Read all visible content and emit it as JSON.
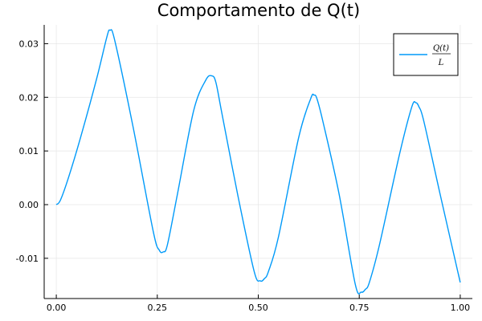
{
  "chart_data": {
    "type": "line",
    "title": "Comportamento de Q(t)",
    "xlabel": "",
    "ylabel": "",
    "xlim": [
      -0.03,
      1.03
    ],
    "ylim": [
      -0.0175,
      0.0335
    ],
    "grid": true,
    "legend_position": "top-right",
    "xticks": [
      0.0,
      0.25,
      0.5,
      0.75,
      1.0
    ],
    "xtick_labels": [
      "0.00",
      "0.25",
      "0.50",
      "0.75",
      "1.00"
    ],
    "yticks": [
      -0.01,
      0.0,
      0.01,
      0.02,
      0.03
    ],
    "ytick_labels": [
      "-0.01",
      "0.00",
      "0.01",
      "0.02",
      "0.03"
    ],
    "series": [
      {
        "name": "Q(t)/L",
        "legend": {
          "numerator": "Q(t)",
          "denominator": "L"
        },
        "color": "#009AF9",
        "x": [
          0.0,
          0.01,
          0.03,
          0.06,
          0.1,
          0.125,
          0.133,
          0.145,
          0.19,
          0.24,
          0.255,
          0.265,
          0.275,
          0.3,
          0.34,
          0.37,
          0.385,
          0.395,
          0.41,
          0.45,
          0.49,
          0.505,
          0.515,
          0.525,
          0.55,
          0.6,
          0.63,
          0.638,
          0.645,
          0.66,
          0.7,
          0.74,
          0.755,
          0.765,
          0.775,
          0.8,
          0.85,
          0.88,
          0.89,
          0.898,
          0.91,
          0.95,
          1.0
        ],
        "y": [
          0.0,
          0.0008,
          0.005,
          0.0125,
          0.0235,
          0.0312,
          0.0325,
          0.0305,
          0.0145,
          -0.005,
          -0.0085,
          -0.0088,
          -0.0075,
          0.002,
          0.0175,
          0.0232,
          0.024,
          0.0228,
          0.017,
          0.0015,
          -0.0125,
          -0.0142,
          -0.0138,
          -0.0125,
          -0.006,
          0.0125,
          0.0198,
          0.0204,
          0.0198,
          0.0155,
          0.002,
          -0.0148,
          -0.0163,
          -0.0158,
          -0.0145,
          -0.0075,
          0.0095,
          0.0182,
          0.019,
          0.0182,
          0.0155,
          0.002,
          -0.0145
        ]
      }
    ]
  }
}
